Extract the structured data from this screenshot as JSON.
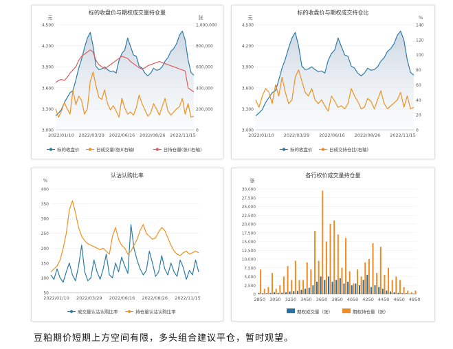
{
  "caption": "豆粕期价短期上方空间有限，多头组合建议平仓，暂时观望。",
  "colors": {
    "blue": "#2b7aa6",
    "orange": "#f0901e",
    "red": "#e05a5a",
    "barBlue": "#2a6f9e",
    "barOrange": "#ef8d24"
  },
  "chart_data": [
    {
      "type": "line",
      "title": "标的收盘价与期权成交量持仓量",
      "y_unit_left": "元",
      "y_unit_right": "张",
      "ylim_left": [
        3000,
        4500
      ],
      "yticks_left": [
        "3,000",
        "3,300",
        "3,600",
        "3,900",
        "4,200",
        "4,500"
      ],
      "ylim_right": [
        0,
        1000000
      ],
      "yticks_right": [
        "0",
        "200,000",
        "400,000",
        "600,000",
        "800,000",
        "1,000,000"
      ],
      "xticks": [
        "2022/01/10",
        "2022/03/29",
        "2022/06/16",
        "2022/08/26",
        "2022/11/15"
      ],
      "legend": [
        "标的收盘价",
        "日成交量(张)(右轴)",
        "日持仓量(张)(右轴)"
      ],
      "series": [
        {
          "name": "标的收盘价",
          "axis": "left",
          "area": true,
          "values": [
            3200,
            3240,
            3290,
            3390,
            3460,
            3530,
            3560,
            3710,
            3880,
            4010,
            4170,
            4310,
            4390,
            4200,
            3910,
            3860,
            3870,
            3900,
            3860,
            3830,
            3840,
            3810,
            3990,
            4090,
            4140,
            4310,
            4190,
            4070,
            4050,
            3910,
            3880,
            3810,
            3770,
            3810,
            3880,
            3850,
            3860,
            3900,
            3980,
            4030,
            4120,
            4160,
            4230,
            4350,
            4410,
            4280,
            4000,
            3820,
            3780
          ]
        },
        {
          "name": "日成交量(张)(右轴)",
          "axis": "right",
          "values": [
            200000,
            120000,
            180000,
            260000,
            200000,
            150000,
            380000,
            240000,
            320000,
            280000,
            150000,
            200000,
            460000,
            550000,
            420000,
            310000,
            290000,
            380000,
            250000,
            190000,
            230000,
            180000,
            120000,
            300000,
            210000,
            150000,
            170000,
            140000,
            210000,
            330000,
            250000,
            190000,
            130000,
            160000,
            250000,
            200000,
            140000,
            220000,
            300000,
            180000,
            140000,
            170000,
            200000,
            220000,
            300000,
            150000,
            250000,
            120000,
            130000
          ]
        },
        {
          "name": "日持仓量(张)(右轴)",
          "axis": "right",
          "values": [
            450000,
            470000,
            480000,
            470000,
            500000,
            540000,
            570000,
            600000,
            660000,
            700000,
            720000,
            740000,
            760000,
            740000,
            660000,
            620000,
            600000,
            580000,
            600000,
            620000,
            640000,
            660000,
            680000,
            700000,
            690000,
            680000,
            650000,
            630000,
            610000,
            590000,
            580000,
            590000,
            610000,
            620000,
            630000,
            640000,
            650000,
            640000,
            630000,
            620000,
            610000,
            600000,
            590000,
            580000,
            570000,
            560000,
            400000,
            380000,
            360000
          ]
        }
      ]
    },
    {
      "type": "line",
      "title": "标的收盘价与期权成交持仓比",
      "y_unit_left": "元",
      "y_unit_right": "%",
      "ylim_left": [
        3000,
        4500
      ],
      "yticks_left": [
        "3,000",
        "3,300",
        "3,600",
        "3,900",
        "4,200",
        "4,500"
      ],
      "ylim_right": [
        0,
        140
      ],
      "yticks_right": [
        "0",
        "20",
        "40",
        "60",
        "80",
        "100",
        "120",
        "140"
      ],
      "xticks": [
        "2022/01/10",
        "2022/03/29",
        "2022/06/16",
        "2022/08/26",
        "2022/11/15"
      ],
      "legend": [
        "标的收盘价",
        "日成交持仓比(右轴)"
      ],
      "series": [
        {
          "name": "标的收盘价",
          "axis": "left",
          "area": true,
          "values": [
            3200,
            3240,
            3290,
            3390,
            3460,
            3530,
            3560,
            3710,
            3880,
            4010,
            4170,
            4310,
            4390,
            4200,
            3910,
            3860,
            3870,
            3900,
            3860,
            3830,
            3840,
            3810,
            3990,
            4090,
            4140,
            4310,
            4190,
            4070,
            4050,
            3910,
            3880,
            3810,
            3770,
            3810,
            3880,
            3850,
            3860,
            3900,
            3980,
            4030,
            4120,
            4160,
            4230,
            4350,
            4410,
            4280,
            4000,
            3820,
            3780
          ]
        },
        {
          "name": "日成交持仓比(右轴)",
          "axis": "right",
          "values": [
            40,
            30,
            45,
            55,
            50,
            35,
            60,
            45,
            70,
            50,
            35,
            40,
            70,
            80,
            65,
            50,
            45,
            55,
            40,
            35,
            40,
            32,
            25,
            45,
            38,
            30,
            32,
            28,
            35,
            55,
            45,
            38,
            28,
            30,
            42,
            38,
            28,
            40,
            52,
            35,
            28,
            32,
            36,
            40,
            50,
            30,
            45,
            28,
            30
          ]
        }
      ]
    },
    {
      "type": "line",
      "title": "认沽认购比率",
      "y_unit_left": "%",
      "ylim_left": [
        50,
        400
      ],
      "yticks_left": [
        "50",
        "100",
        "150",
        "200",
        "250",
        "300",
        "350",
        "400"
      ],
      "xticks": [
        "2022/01/10",
        "2022/03/29",
        "2022/06/16",
        "2022/08/26",
        "2022/11/15"
      ],
      "legend": [
        "成交量认沽认购比率",
        "持仓量认沽认购比率"
      ],
      "series": [
        {
          "name": "成交量认沽认购比率",
          "axis": "left",
          "values": [
            110,
            95,
            130,
            100,
            85,
            120,
            150,
            110,
            90,
            140,
            210,
            120,
            90,
            100,
            160,
            120,
            95,
            130,
            180,
            110,
            100,
            150,
            120,
            170,
            140,
            115,
            280,
            200,
            160,
            130,
            110,
            125,
            190,
            150,
            105,
            120,
            175,
            130,
            110,
            150,
            120,
            105,
            160,
            135,
            95,
            125,
            110,
            160,
            120
          ]
        },
        {
          "name": "持仓量认沽认购比率",
          "axis": "left",
          "values": [
            120,
            130,
            140,
            160,
            200,
            250,
            330,
            360,
            320,
            270,
            240,
            225,
            215,
            210,
            205,
            200,
            195,
            200,
            190,
            180,
            240,
            270,
            230,
            210,
            200,
            180,
            190,
            210,
            230,
            260,
            280,
            250,
            240,
            230,
            235,
            255,
            270,
            260,
            235,
            210,
            190,
            180,
            175,
            185,
            190,
            180,
            185,
            190,
            185
          ]
        }
      ]
    },
    {
      "type": "bar",
      "title": "各行权价成交量持仓量",
      "y_unit_left": "张",
      "ylim": [
        0,
        30000
      ],
      "yticks": [
        "0",
        "2,500",
        "5,000",
        "7,500",
        "10,000",
        "12,500",
        "15,000",
        "17,500",
        "20,000",
        "22,500",
        "25,000",
        "27,500",
        "30,000"
      ],
      "categories": [
        2850,
        2900,
        2950,
        3000,
        3050,
        3100,
        3150,
        3200,
        3250,
        3300,
        3350,
        3400,
        3450,
        3500,
        3550,
        3600,
        3650,
        3700,
        3750,
        3800,
        3850,
        3900,
        3950,
        4000,
        4050,
        4100,
        4150,
        4200,
        4250,
        4300,
        4350,
        4400,
        4450,
        4500,
        4550,
        4600,
        4650,
        4700,
        4750,
        4800,
        4850
      ],
      "xticks": [
        "2850",
        "3050",
        "3250",
        "3450",
        "3650",
        "3850",
        "4050",
        "4250",
        "4450",
        "4650",
        "4850"
      ],
      "legend": [
        "期权成交量（张）",
        "期权持仓量（张）"
      ],
      "series": [
        {
          "name": "期权成交量（张）",
          "values": [
            300,
            200,
            200,
            300,
            500,
            300,
            400,
            500,
            700,
            800,
            900,
            1200,
            1500,
            1800,
            2500,
            3500,
            5000,
            4000,
            5000,
            3500,
            4000,
            4500,
            3000,
            3500,
            2500,
            3000,
            2500,
            4000,
            5500,
            2000,
            2500,
            2000,
            1500,
            1000,
            700,
            500,
            300,
            200,
            200,
            100,
            100
          ]
        },
        {
          "name": "期权持仓量（张）",
          "values": [
            7000,
            1500,
            2000,
            6000,
            1500,
            2500,
            5000,
            8000,
            4000,
            9500,
            4000,
            4000,
            9000,
            7000,
            18000,
            9500,
            29500,
            15000,
            20000,
            21000,
            17000,
            7500,
            16000,
            6500,
            3000,
            7000,
            5000,
            9000,
            10000,
            14500,
            6000,
            13500,
            5500,
            7500,
            4000,
            5000,
            4000,
            2000,
            1000,
            500,
            1000
          ]
        }
      ]
    }
  ]
}
